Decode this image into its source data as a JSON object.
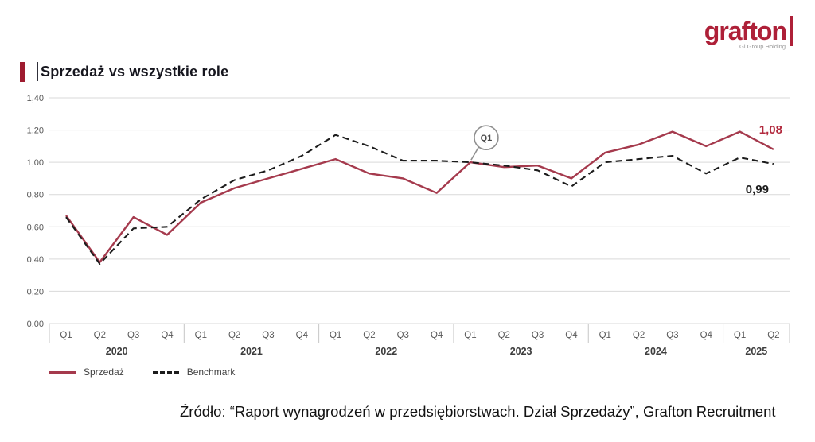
{
  "header": {
    "logo_text": "grafton",
    "logo_tagline": "Gi Group Holding"
  },
  "title": "Sprzedaż vs wszystkie role",
  "footer": {
    "source": "Źródło: “Raport wynagrodzeń w  przedsiębiorstwach. Dział Sprzedaży”, Grafton Recruitment"
  },
  "colors": {
    "brand_red": "#ae2038",
    "title_accent_red": "#9e1b2f",
    "series_red": "#a53a4d",
    "series_red_label": "#b2293d",
    "series_black": "#1c1c1c",
    "gridline": "#d9d9d9",
    "axis_text": "#595959"
  },
  "chart_data": {
    "type": "line",
    "title": "Sprzedaż vs wszystkie role",
    "ylim": [
      0,
      1.4
    ],
    "ytick_step": 0.2,
    "ytick_labels": [
      "0,00",
      "0,20",
      "0,40",
      "0,60",
      "0,80",
      "1,00",
      "1,20",
      "1,40"
    ],
    "grid": "horizontal",
    "legend_position": "bottom-left",
    "x_quarters": [
      "Q1",
      "Q2",
      "Q3",
      "Q4",
      "Q1",
      "Q2",
      "Q3",
      "Q4",
      "Q1",
      "Q2",
      "Q3",
      "Q4",
      "Q1",
      "Q2",
      "Q3",
      "Q4",
      "Q1",
      "Q2",
      "Q3",
      "Q4",
      "Q1",
      "Q2"
    ],
    "years": [
      {
        "label": "2020",
        "quarters": 4
      },
      {
        "label": "2021",
        "quarters": 4
      },
      {
        "label": "2022",
        "quarters": 4
      },
      {
        "label": "2023",
        "quarters": 4
      },
      {
        "label": "2024",
        "quarters": 4
      },
      {
        "label": "2025",
        "quarters": 2
      }
    ],
    "series": [
      {
        "name": "Sprzedaż",
        "style": "solid",
        "color": "#a53a4d",
        "values": [
          0.67,
          0.38,
          0.66,
          0.55,
          0.75,
          0.84,
          0.9,
          0.96,
          1.02,
          0.93,
          0.9,
          0.81,
          1.0,
          0.97,
          0.98,
          0.9,
          1.06,
          1.11,
          1.19,
          1.1,
          1.19,
          1.08
        ],
        "end_label": "1,08"
      },
      {
        "name": "Benchmark",
        "style": "dashed",
        "color": "#1c1c1c",
        "values": [
          0.66,
          0.37,
          0.59,
          0.6,
          0.77,
          0.89,
          0.95,
          1.04,
          1.17,
          1.1,
          1.01,
          1.01,
          1.0,
          0.98,
          0.95,
          0.85,
          1.0,
          1.02,
          1.04,
          0.93,
          1.03,
          0.99
        ],
        "end_label": "0,99"
      }
    ],
    "annotation": {
      "label": "Q1",
      "series": "Benchmark",
      "point": "Q1 2023",
      "index": 12
    }
  }
}
